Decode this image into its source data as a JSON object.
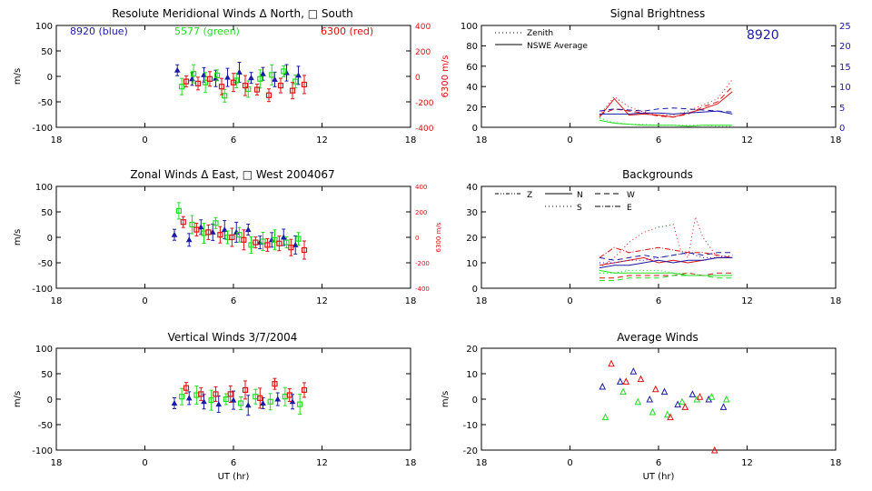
{
  "figure": {
    "xlabel": "UT (hr)",
    "xticks": [
      "18",
      "0",
      "6",
      "12",
      "18"
    ],
    "colors": {
      "blue": "#1a1aa6",
      "green": "#22dd22",
      "red": "#dd1111",
      "black": "#000000"
    }
  },
  "chart_data": [
    {
      "id": "meridional",
      "type": "scatter",
      "title": "Resolute Meridional Winds Δ North, □ South",
      "ylabel": "m/s",
      "ylim": [
        -100,
        100
      ],
      "yticks": [
        "100",
        "50",
        "0",
        "-50",
        "-100"
      ],
      "y2label": "6300 m/s",
      "y2lim": [
        -400,
        400
      ],
      "y2ticks": [
        "400",
        "200",
        "0",
        "-200",
        "-400"
      ],
      "xlim": [
        -6,
        18
      ],
      "annotations": [
        {
          "text": "8920 (blue)",
          "color": "blue"
        },
        {
          "text": "5577 (green)",
          "color": "green"
        },
        {
          "text": "6300 (red)",
          "color": "red"
        }
      ],
      "series": [
        {
          "color": "blue",
          "x": [
            2.2,
            3.2,
            4.0,
            4.8,
            5.6,
            6.4,
            7.2,
            8.0,
            8.8,
            9.6,
            10.4
          ],
          "y": [
            12,
            -5,
            3,
            -4,
            -2,
            8,
            -3,
            5,
            -6,
            7,
            2
          ]
        },
        {
          "color": "green",
          "x": [
            2.5,
            3.3,
            4.1,
            4.9,
            5.4,
            6.2,
            7.0,
            7.8,
            8.6,
            9.4,
            10.2
          ],
          "y": [
            -20,
            5,
            -12,
            2,
            -38,
            -8,
            -25,
            -5,
            3,
            10,
            -10
          ]
        },
        {
          "color": "red",
          "x": [
            2.8,
            3.6,
            4.4,
            5.2,
            6.0,
            6.8,
            7.6,
            8.4,
            9.2,
            10.0,
            10.8
          ],
          "y": [
            -10,
            -14,
            -5,
            -20,
            -12,
            -18,
            -26,
            -37,
            -18,
            -28,
            -16
          ]
        }
      ]
    },
    {
      "id": "zonal",
      "type": "scatter",
      "title": "Zonal Winds Δ East, □ West 2004067",
      "ylabel": "m/s",
      "ylim": [
        -100,
        100
      ],
      "yticks": [
        "100",
        "50",
        "0",
        "-50",
        "-100"
      ],
      "y2label": "6300 m/s",
      "y2lim": [
        -400,
        400
      ],
      "y2ticks": [
        "400",
        "200",
        "0",
        "-200",
        "-400"
      ],
      "xlim": [
        -6,
        18
      ],
      "series": [
        {
          "color": "blue",
          "x": [
            2.0,
            3.0,
            3.8,
            4.6,
            5.4,
            6.2,
            7.0,
            7.8,
            8.6,
            9.4,
            10.2
          ],
          "y": [
            5,
            -5,
            20,
            10,
            15,
            10,
            15,
            -10,
            -5,
            0,
            -15
          ]
        },
        {
          "color": "green",
          "x": [
            2.3,
            3.2,
            4.0,
            4.8,
            5.6,
            6.4,
            7.2,
            8.0,
            8.8,
            9.6,
            10.4
          ],
          "y": [
            52,
            25,
            8,
            28,
            0,
            5,
            -15,
            -8,
            -5,
            -10,
            -3
          ]
        },
        {
          "color": "red",
          "x": [
            2.6,
            3.5,
            4.3,
            5.1,
            5.9,
            6.7,
            7.5,
            8.3,
            9.1,
            9.9,
            10.8
          ],
          "y": [
            30,
            15,
            10,
            5,
            0,
            -5,
            -10,
            -15,
            -12,
            -20,
            -25
          ]
        }
      ]
    },
    {
      "id": "vertical",
      "type": "scatter",
      "title": "Vertical Winds 3/7/2004",
      "ylabel": "m/s",
      "ylim": [
        -100,
        100
      ],
      "yticks": [
        "100",
        "50",
        "0",
        "-50",
        "-100"
      ],
      "xlim": [
        -6,
        18
      ],
      "series": [
        {
          "color": "blue",
          "x": [
            2.0,
            3.0,
            4.0,
            5.0,
            6.0,
            7.0,
            8.0,
            9.0,
            10.0
          ],
          "y": [
            -8,
            2,
            -5,
            -10,
            -2,
            -12,
            -8,
            0,
            -5
          ]
        },
        {
          "color": "green",
          "x": [
            2.5,
            3.5,
            4.5,
            5.5,
            6.5,
            7.5,
            8.5,
            9.5,
            10.5
          ],
          "y": [
            5,
            8,
            -2,
            0,
            -8,
            5,
            -5,
            5,
            -10
          ]
        },
        {
          "color": "red",
          "x": [
            2.8,
            3.8,
            4.8,
            5.8,
            6.8,
            7.8,
            8.8,
            9.8,
            10.8
          ],
          "y": [
            22,
            10,
            10,
            10,
            18,
            2,
            30,
            8,
            18
          ]
        }
      ]
    },
    {
      "id": "brightness",
      "type": "line",
      "title": "Signal Brightness",
      "ylim": [
        0,
        100
      ],
      "yticks": [
        "100",
        "80",
        "60",
        "40",
        "20",
        "0"
      ],
      "y2lim": [
        0,
        25
      ],
      "y2ticks": [
        "25",
        "20",
        "15",
        "10",
        "5",
        "0"
      ],
      "xlim": [
        -6,
        18
      ],
      "annotation": {
        "text": "8920",
        "color": "blue"
      },
      "legend": [
        "Zenith",
        "NSWE Average"
      ],
      "series": [
        {
          "color": "red",
          "style": "dotted",
          "x": [
            2,
            3,
            4,
            5,
            6,
            7,
            8,
            9,
            10,
            11
          ],
          "y": [
            12,
            30,
            20,
            15,
            12,
            12,
            16,
            22,
            28,
            47
          ]
        },
        {
          "color": "red",
          "style": "solid",
          "x": [
            2,
            3,
            4,
            5,
            6,
            7,
            8,
            9,
            10,
            11
          ],
          "y": [
            10,
            28,
            12,
            13,
            12,
            10,
            14,
            18,
            23,
            35
          ]
        },
        {
          "color": "red",
          "style": "dashed",
          "x": [
            2,
            3,
            4,
            5,
            6,
            7,
            8,
            9,
            10,
            11
          ],
          "y": [
            12,
            18,
            16,
            14,
            11,
            10,
            13,
            20,
            25,
            40
          ]
        },
        {
          "color": "blue",
          "style": "solid",
          "x": [
            2,
            3,
            4,
            5,
            6,
            7,
            8,
            9,
            10,
            11
          ],
          "y": [
            13,
            13,
            13,
            14,
            14,
            13,
            14,
            15,
            16,
            13
          ]
        },
        {
          "color": "blue",
          "style": "dashed",
          "x": [
            2,
            3,
            4,
            5,
            6,
            7,
            8,
            9,
            10,
            11
          ],
          "y": [
            16,
            18,
            17,
            16,
            18,
            19,
            18,
            17,
            16,
            15
          ]
        },
        {
          "color": "green",
          "style": "solid",
          "x": [
            2,
            3,
            4,
            5,
            6,
            7,
            8,
            9,
            10,
            11
          ],
          "y": [
            7,
            4,
            3,
            2,
            2,
            2,
            1,
            2,
            2,
            2
          ]
        },
        {
          "color": "green",
          "style": "dotted",
          "x": [
            2,
            3,
            4,
            5,
            6,
            7,
            8,
            9,
            10,
            11
          ],
          "y": [
            9,
            5,
            3,
            3,
            2,
            2,
            2,
            2,
            1,
            1
          ]
        }
      ]
    },
    {
      "id": "backgrounds",
      "type": "line",
      "title": "Backgrounds",
      "ylim": [
        0,
        40
      ],
      "yticks": [
        "40",
        "30",
        "20",
        "10",
        "0"
      ],
      "xlim": [
        -6,
        18
      ],
      "legend": [
        "Z",
        "N",
        "W",
        "S",
        "E"
      ],
      "series": [
        {
          "color": "red",
          "style": "dotted",
          "x": [
            2,
            3,
            4,
            5,
            6,
            7,
            7.5,
            8,
            8.5,
            9,
            10,
            11
          ],
          "y": [
            8,
            12,
            18,
            22,
            24,
            25,
            15,
            12,
            28,
            20,
            12,
            12
          ]
        },
        {
          "color": "red",
          "style": "dashdot",
          "x": [
            2,
            3,
            4,
            5,
            6,
            7,
            8,
            9,
            10,
            11
          ],
          "y": [
            12,
            16,
            14,
            15,
            16,
            15,
            14,
            14,
            13,
            12
          ]
        },
        {
          "color": "red",
          "style": "solid",
          "x": [
            2,
            3,
            4,
            5,
            6,
            7,
            8,
            9,
            10,
            11
          ],
          "y": [
            9,
            10,
            11,
            12,
            10,
            11,
            10,
            11,
            12,
            12
          ]
        },
        {
          "color": "red",
          "style": "dashed",
          "x": [
            2,
            3,
            4,
            5,
            6,
            7,
            8,
            9,
            10,
            11
          ],
          "y": [
            4,
            4,
            5,
            5,
            5,
            5,
            6,
            5,
            6,
            6
          ]
        },
        {
          "color": "blue",
          "style": "dashed",
          "x": [
            2,
            3,
            4,
            5,
            6,
            7,
            8,
            9,
            10,
            11
          ],
          "y": [
            12,
            11,
            12,
            13,
            12,
            13,
            14,
            13,
            14,
            14
          ]
        },
        {
          "color": "blue",
          "style": "solid",
          "x": [
            2,
            3,
            4,
            5,
            6,
            7,
            8,
            9,
            10,
            11
          ],
          "y": [
            8,
            9,
            9,
            10,
            11,
            10,
            11,
            11,
            12,
            12
          ]
        },
        {
          "color": "blue",
          "style": "dotted",
          "x": [
            2,
            3,
            4,
            5,
            6,
            7,
            8,
            9,
            10,
            11
          ],
          "y": [
            10,
            10,
            11,
            11,
            12,
            13,
            14,
            12,
            12,
            13
          ]
        },
        {
          "color": "green",
          "style": "solid",
          "x": [
            2,
            3,
            4,
            5,
            6,
            7,
            8,
            9,
            10,
            11
          ],
          "y": [
            7,
            6,
            6,
            6,
            6,
            6,
            5,
            5,
            5,
            5
          ]
        },
        {
          "color": "green",
          "style": "dashed",
          "x": [
            2,
            3,
            4,
            5,
            6,
            7,
            8,
            9,
            10,
            11
          ],
          "y": [
            3,
            3,
            4,
            4,
            4,
            5,
            5,
            5,
            4,
            4
          ]
        },
        {
          "color": "green",
          "style": "dotted",
          "x": [
            2,
            3,
            4,
            5,
            6,
            7,
            8,
            9,
            10,
            11
          ],
          "y": [
            6,
            6,
            7,
            7,
            7,
            6,
            6,
            5,
            5,
            5
          ]
        }
      ]
    },
    {
      "id": "average",
      "type": "scatter",
      "title": "Average Winds",
      "ylabel": "m/s",
      "ylim": [
        -20,
        20
      ],
      "yticks": [
        "20",
        "10",
        "0",
        "-10",
        "-20"
      ],
      "xlim": [
        -6,
        18
      ],
      "series": [
        {
          "color": "blue",
          "x": [
            2.2,
            3.4,
            4.3,
            5.4,
            6.4,
            7.3,
            8.3,
            9.4,
            10.4
          ],
          "y": [
            5,
            7,
            11,
            0,
            3,
            -2,
            2,
            0,
            -3
          ]
        },
        {
          "color": "green",
          "x": [
            2.4,
            3.6,
            4.6,
            5.6,
            6.6,
            7.6,
            8.6,
            9.6,
            10.6
          ],
          "y": [
            -7,
            3,
            -1,
            -5,
            -6,
            -1,
            0,
            1,
            0
          ]
        },
        {
          "color": "red",
          "x": [
            2.8,
            3.8,
            4.8,
            5.8,
            6.8,
            7.8,
            8.8,
            9.8
          ],
          "y": [
            14,
            7,
            8,
            4,
            -7,
            -3,
            1,
            -20
          ]
        }
      ]
    }
  ]
}
